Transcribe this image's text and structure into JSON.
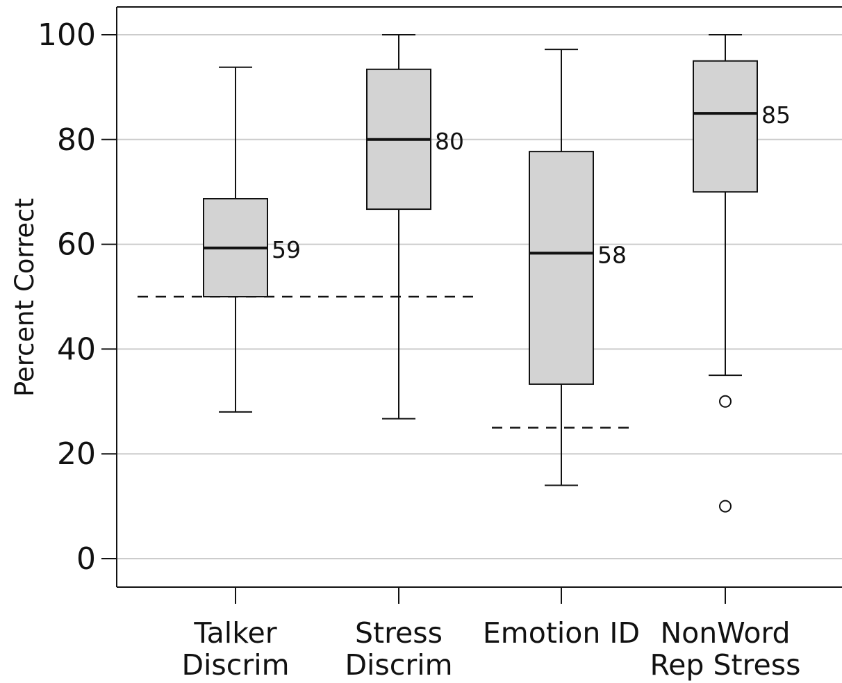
{
  "chart_data": {
    "type": "box",
    "ylabel": "Percent Correct",
    "ylim": [
      0,
      100
    ],
    "yticks": [
      0,
      20,
      40,
      60,
      80,
      100
    ],
    "grid": true,
    "categories": [
      [
        "Talker",
        "Discrim"
      ],
      [
        "Stress",
        "Discrim"
      ],
      [
        "Emotion ID"
      ],
      [
        "NonWord",
        "Rep Stress"
      ]
    ],
    "boxes": [
      {
        "whisker_low": 28,
        "q1": 50,
        "median": 59.3,
        "q3": 68.7,
        "whisker_high": 93.8,
        "median_label": "59",
        "outliers": []
      },
      {
        "whisker_low": 26.7,
        "q1": 66.7,
        "median": 80,
        "q3": 93.4,
        "whisker_high": 100,
        "median_label": "80",
        "outliers": []
      },
      {
        "whisker_low": 14,
        "q1": 33.3,
        "median": 58.3,
        "q3": 77.7,
        "whisker_high": 97.2,
        "median_label": "58",
        "outliers": []
      },
      {
        "whisker_low": 35,
        "q1": 70,
        "median": 85,
        "q3": 95,
        "whisker_high": 100,
        "median_label": "85",
        "outliers": [
          30,
          10
        ]
      }
    ],
    "reference_lines": [
      {
        "value": 50,
        "from_category": 0,
        "to_category": 1,
        "style": "dashed"
      },
      {
        "value": 25,
        "from_category": 2,
        "to_category": 2,
        "style": "dashed"
      }
    ],
    "colors": {
      "box_fill": "#d3d3d3",
      "stroke": "#111111",
      "grid": "#cccccc"
    }
  }
}
